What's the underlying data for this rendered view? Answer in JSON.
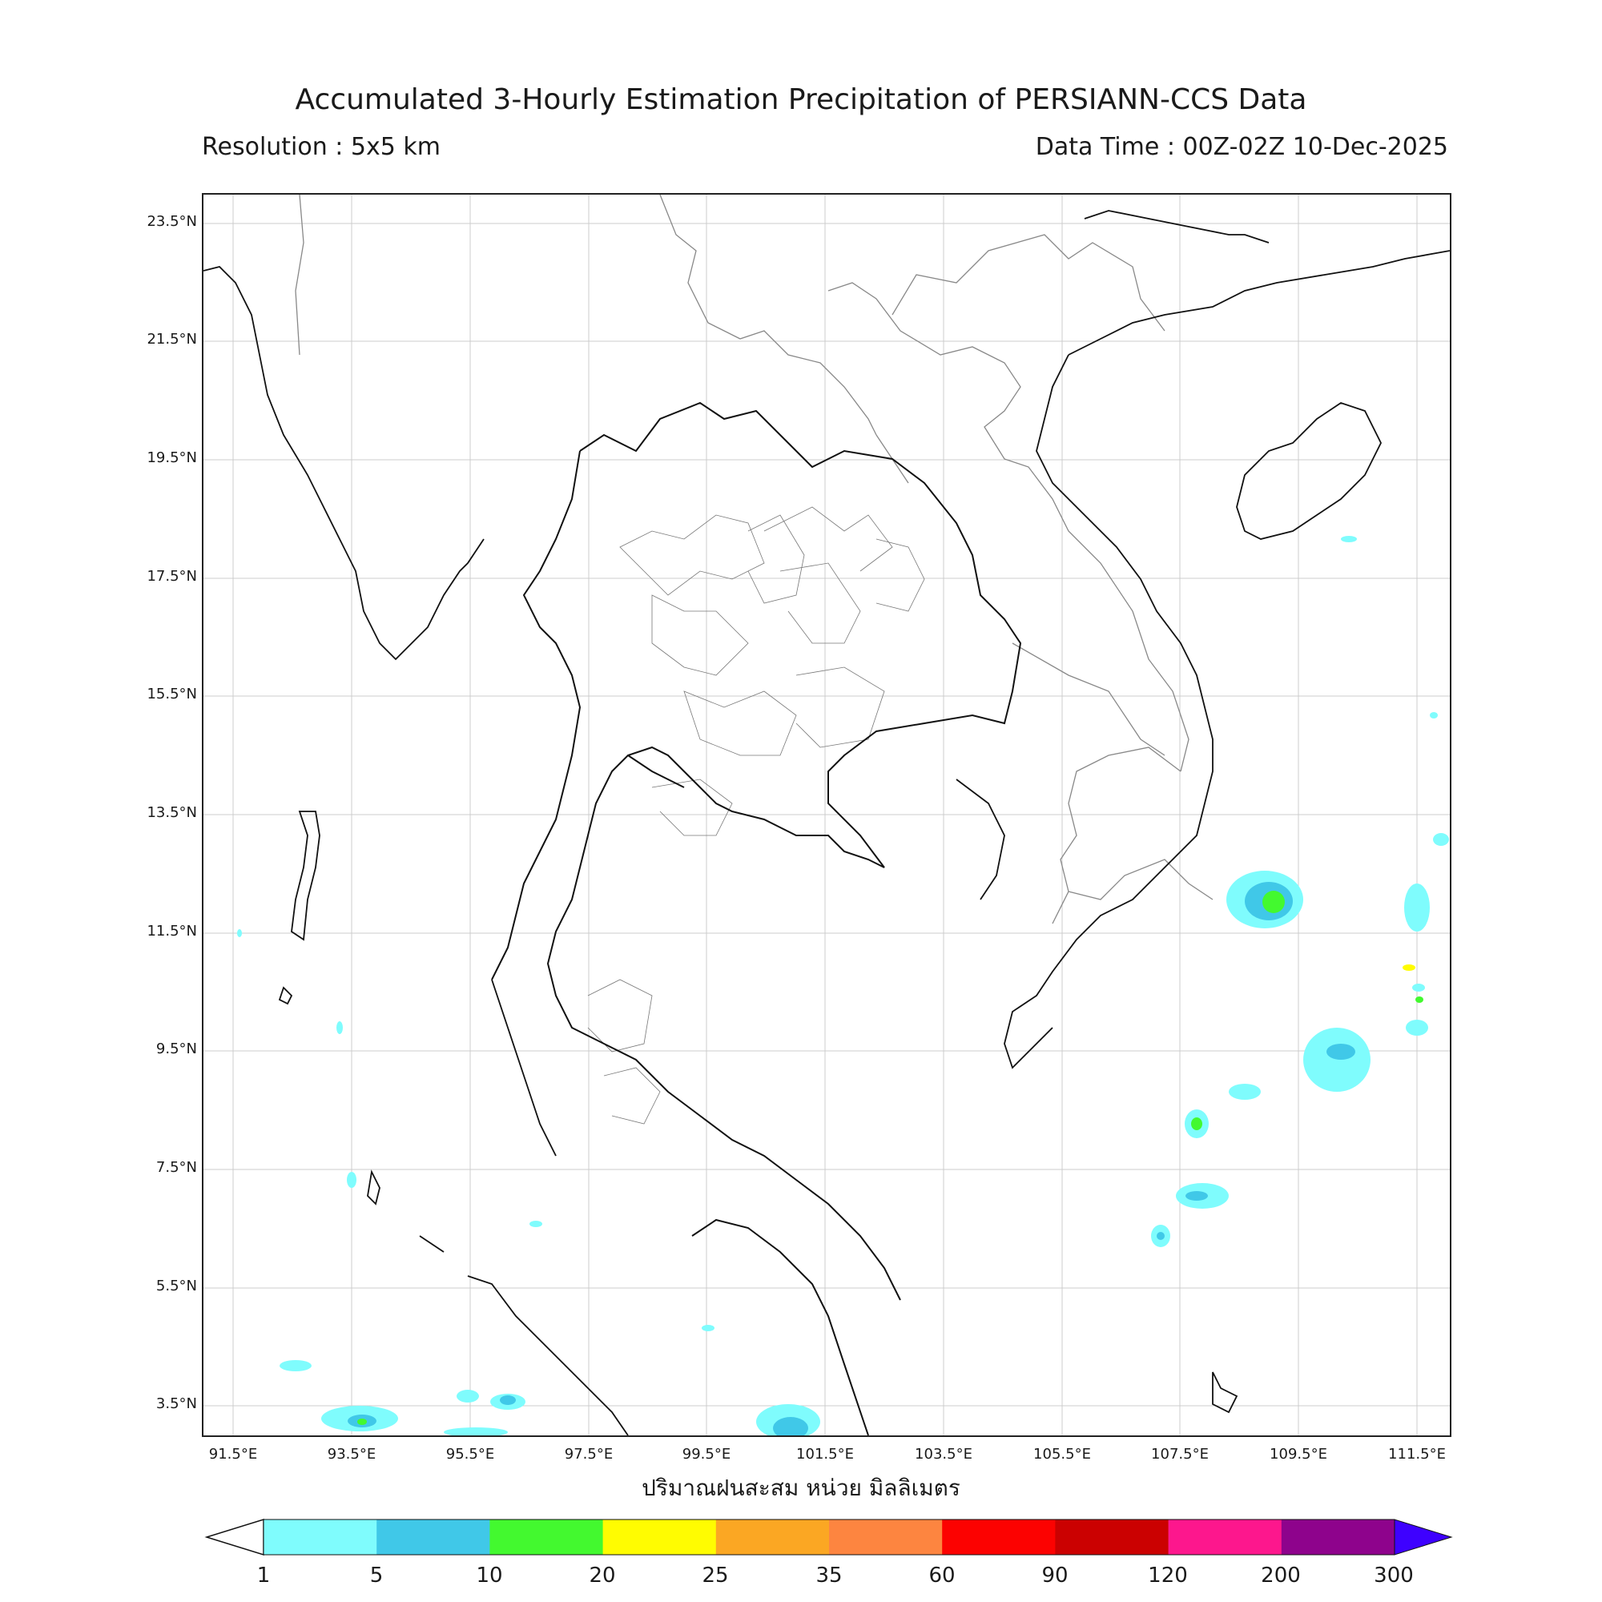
{
  "header": {
    "title": "Accumulated 3-Hourly Estimation Precipitation of PERSIANN-CCS Data",
    "resolution": "Resolution : 5x5 km",
    "data_time": "Data Time : 00Z-02Z 10-Dec-2025"
  },
  "map": {
    "lat_labels": [
      "23.5°N",
      "21.5°N",
      "19.5°N",
      "17.5°N",
      "15.5°N",
      "13.5°N",
      "11.5°N",
      "9.5°N",
      "7.5°N",
      "5.5°N",
      "3.5°N"
    ],
    "lon_labels": [
      "91.5°E",
      "93.5°E",
      "95.5°E",
      "97.5°E",
      "99.5°E",
      "101.5°E",
      "103.5°E",
      "105.5°E",
      "107.5°E",
      "109.5°E",
      "111.5°E"
    ],
    "xlabel": "ปริมาณฝนสะสม หน่วย มิลลิเมตร",
    "colors": {
      "coast": "#111111",
      "border": "#888888",
      "grid": "#cccccc"
    }
  },
  "colorbar": {
    "ticks": [
      "1",
      "5",
      "10",
      "20",
      "25",
      "35",
      "60",
      "90",
      "120",
      "200",
      "300"
    ],
    "colors": [
      "#7ffcfd",
      "#40c8e8",
      "#43f92f",
      "#fffc01",
      "#fba723",
      "#fd8540",
      "#fc0201",
      "#cb0101",
      "#fd178d",
      "#8e038c",
      "#3e01ff"
    ],
    "under_color": "#ffffff"
  }
}
